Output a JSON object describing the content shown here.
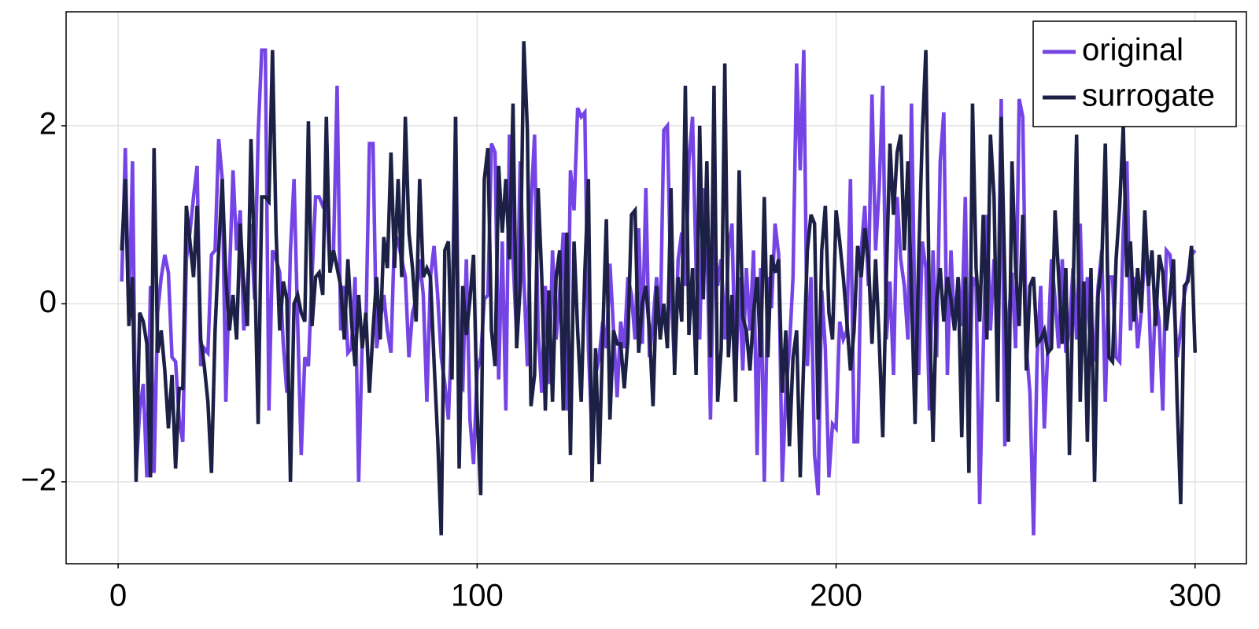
{
  "chart_data": {
    "type": "line",
    "x": [
      1,
      2,
      3,
      4,
      5,
      6,
      7,
      8,
      9,
      10,
      11,
      12,
      13,
      14,
      15,
      16,
      17,
      18,
      19,
      20,
      21,
      22,
      23,
      24,
      25,
      26,
      27,
      28,
      29,
      30,
      31,
      32,
      33,
      34,
      35,
      36,
      37,
      38,
      39,
      40,
      41,
      42,
      43,
      44,
      45,
      46,
      47,
      48,
      49,
      50,
      51,
      52,
      53,
      54,
      55,
      56,
      57,
      58,
      59,
      60,
      61,
      62,
      63,
      64,
      65,
      66,
      67,
      68,
      69,
      70,
      71,
      72,
      73,
      74,
      75,
      76,
      77,
      78,
      79,
      80,
      81,
      82,
      83,
      84,
      85,
      86,
      87,
      88,
      89,
      90,
      91,
      92,
      93,
      94,
      95,
      96,
      97,
      98,
      99,
      100,
      101,
      102,
      103,
      104,
      105,
      106,
      107,
      108,
      109,
      110,
      111,
      112,
      113,
      114,
      115,
      116,
      117,
      118,
      119,
      120,
      121,
      122,
      123,
      124,
      125,
      126,
      127,
      128,
      129,
      130,
      131,
      132,
      133,
      134,
      135,
      136,
      137,
      138,
      139,
      140,
      141,
      142,
      143,
      144,
      145,
      146,
      147,
      148,
      149,
      150,
      151,
      152,
      153,
      154,
      155,
      156,
      157,
      158,
      159,
      160,
      161,
      162,
      163,
      164,
      165,
      166,
      167,
      168,
      169,
      170,
      171,
      172,
      173,
      174,
      175,
      176,
      177,
      178,
      179,
      180,
      181,
      182,
      183,
      184,
      185,
      186,
      187,
      188,
      189,
      190,
      191,
      192,
      193,
      194,
      195,
      196,
      197,
      198,
      199,
      200,
      201,
      202,
      203,
      204,
      205,
      206,
      207,
      208,
      209,
      210,
      211,
      212,
      213,
      214,
      215,
      216,
      217,
      218,
      219,
      220,
      221,
      222,
      223,
      224,
      225,
      226,
      227,
      228,
      229,
      230,
      231,
      232,
      233,
      234,
      235,
      236,
      237,
      238,
      239,
      240,
      241,
      242,
      243,
      244,
      245,
      246,
      247,
      248,
      249,
      250,
      251,
      252,
      253,
      254,
      255,
      256,
      257,
      258,
      259,
      260,
      261,
      262,
      263,
      264,
      265,
      266,
      267,
      268,
      269,
      270,
      271,
      272,
      273,
      274,
      275,
      276,
      277,
      278,
      279,
      280,
      281,
      282,
      283,
      284,
      285,
      286,
      287,
      288,
      289,
      290,
      291,
      292,
      293,
      294,
      295,
      296,
      297,
      298,
      299,
      300
    ],
    "series": [
      {
        "name": "original",
        "color": "#7544e4",
        "values": [
          0.25,
          1.75,
          -0.2,
          1.6,
          -1.9,
          -1.2,
          -0.9,
          -1.95,
          0.2,
          -1.9,
          -0.1,
          0.3,
          0.55,
          0.35,
          -0.6,
          -0.65,
          -1.3,
          -1.55,
          0.5,
          0.8,
          1.2,
          1.55,
          -0.7,
          -0.5,
          -0.55,
          0.55,
          0.6,
          1.85,
          1.4,
          -1.1,
          0.3,
          1.5,
          0.6,
          1.05,
          -0.3,
          0.2,
          0.9,
          0.05,
          1.9,
          2.85,
          2.85,
          -1.2,
          0.6,
          0.5,
          0.35,
          -0.45,
          -1.0,
          0.6,
          1.4,
          -0.2,
          -1.7,
          -0.6,
          -0.7,
          0.3,
          1.2,
          1.2,
          1.1,
          1.15,
          0.4,
          0.6,
          2.45,
          -0.3,
          0.2,
          -0.55,
          -0.5,
          0.3,
          -2.0,
          -0.4,
          -0.3,
          1.8,
          1.8,
          -0.5,
          -0.2,
          0.1,
          -0.3,
          -0.55,
          0.8,
          0.7,
          0.5,
          0.3,
          -0.6,
          -0.1,
          0.05,
          0.5,
          0.1,
          -1.1,
          0.3,
          0.65,
          0.1,
          -0.6,
          -0.9,
          -1.3,
          -0.2,
          2.1,
          -0.9,
          -0.95,
          0.5,
          -1.3,
          -1.8,
          -0.75,
          -0.6,
          0.05,
          0.1,
          1.8,
          1.7,
          -0.85,
          0.7,
          -1.2,
          1.9,
          0.5,
          -0.35,
          1.6,
          0.3,
          -0.7,
          1.1,
          1.9,
          -0.3,
          -1.0,
          0.2,
          -0.9,
          0.6,
          -0.4,
          0.1,
          0.8,
          -1.2,
          1.5,
          1.05,
          2.2,
          2.1,
          2.15,
          -0.5,
          -1.5,
          -0.8,
          -0.6,
          -0.2,
          -0.5,
          0.45,
          -0.3,
          -1.05,
          -0.2,
          -0.5,
          0.3,
          0.1,
          -0.4,
          0.85,
          -0.45,
          1.3,
          -0.6,
          -0.2,
          0.3,
          -0.3,
          1.95,
          2.0,
          0.15,
          -0.7,
          0.5,
          0.8,
          0.2,
          1.6,
          2.1,
          0.4,
          -0.4,
          1.3,
          0.8,
          -1.3,
          0.9,
          0.2,
          0.5,
          -0.4,
          0.6,
          0.9,
          -0.9,
          0.3,
          -0.75,
          0.4,
          -0.3,
          0.6,
          -1.7,
          0.4,
          -2.0,
          0.3,
          -0.05,
          0.9,
          0.55,
          -2.0,
          -1.0,
          -0.5,
          0.3,
          2.7,
          1.5,
          2.85,
          -0.7,
          0.3,
          -1.7,
          -2.15,
          0.15,
          -0.5,
          -1.95,
          -1.35,
          -1.4,
          -0.2,
          -0.4,
          -0.3,
          1.4,
          -1.55,
          -1.55,
          0.6,
          1.1,
          0.2,
          2.35,
          0.6,
          1.3,
          2.45,
          -0.4,
          0.25,
          -0.8,
          1.2,
          0.5,
          0.2,
          -0.4,
          2.25,
          -0.3,
          -0.8,
          0.7,
          0.4,
          -1.2,
          0.6,
          -0.6,
          1.6,
          2.15,
          -0.8,
          0.6,
          -0.3,
          0.3,
          -0.25,
          1.2,
          -1.3,
          0.3,
          0.2,
          -2.25,
          -0.5,
          1.0,
          -0.3,
          0.5,
          -0.3,
          2.3,
          -1.6,
          -0.2,
          0.35,
          -0.5,
          2.3,
          2.1,
          -0.5,
          -1.0,
          -2.6,
          -0.6,
          0.2,
          -1.4,
          -0.5,
          0.5,
          0.05,
          -0.5,
          0.5,
          -0.55,
          -0.3,
          0.4,
          -0.4,
          0.9,
          -0.55,
          0.3,
          -0.7,
          -0.6,
          0.2,
          0.6,
          -1.1,
          0.3,
          0.3,
          -0.6,
          -0.65,
          0.8,
          1.6,
          -0.3,
          0.3,
          -0.5,
          -0.1,
          0.6,
          0.2,
          -1.0,
          0.1,
          -0.2,
          -1.2,
          0.6,
          0.55,
          0.1,
          -0.6,
          -0.3,
          0.1,
          0.3,
          0.55,
          0.6
        ]
      },
      {
        "name": "surrogate",
        "color": "#1c2045",
        "values": [
          0.6,
          1.4,
          -0.25,
          0.3,
          -2.0,
          -0.1,
          -0.2,
          -0.45,
          -1.95,
          1.75,
          -0.55,
          -0.3,
          -0.75,
          -1.4,
          -0.8,
          -1.85,
          -0.95,
          -0.95,
          1.1,
          0.7,
          0.3,
          1.1,
          -0.4,
          -0.7,
          -1.1,
          -1.9,
          -0.3,
          0.6,
          1.4,
          0.3,
          -0.3,
          0.1,
          -0.4,
          0.9,
          0.2,
          -0.25,
          1.85,
          0.5,
          -1.35,
          1.2,
          1.2,
          1.15,
          2.85,
          0.8,
          -0.3,
          0.25,
          0.05,
          -2.0,
          0,
          0.1,
          -0.1,
          -0.2,
          2.05,
          -0.25,
          0.3,
          0.35,
          0.1,
          2.1,
          0.35,
          0.6,
          0.4,
          0.2,
          -0.4,
          0.5,
          -0.2,
          -0.7,
          0.1,
          -0.5,
          -0.1,
          -1.0,
          -0.3,
          0.3,
          -0.4,
          0.75,
          0.4,
          1.7,
          0.4,
          1.4,
          0.3,
          2.1,
          0.8,
          0.4,
          -0.2,
          1.4,
          0.3,
          0.4,
          0.3,
          -0.65,
          -1.5,
          -2.6,
          0.6,
          0.7,
          -0.85,
          2.1,
          -1.85,
          0.2,
          -0.35,
          0.05,
          0.55,
          -1.2,
          -2.15,
          1.4,
          1.75,
          -0.3,
          -0.7,
          1.55,
          0.8,
          1.4,
          0.5,
          2.25,
          -0.5,
          0.2,
          2.95,
          1.95,
          -1.15,
          -0.8,
          1.3,
          0.3,
          -1.2,
          0.15,
          -1.1,
          0.3,
          0.6,
          -1.2,
          0.8,
          -1.7,
          0.7,
          -0.3,
          -1.1,
          0.35,
          1.4,
          -2.0,
          -0.5,
          -1.8,
          -0.35,
          0.95,
          -1.3,
          -0.3,
          -0.45,
          -0.45,
          -0.95,
          -0.4,
          1.0,
          1.05,
          -0.55,
          0,
          0.2,
          -0.3,
          -1.15,
          0.2,
          -0.4,
          0,
          -0.5,
          1.3,
          -0.8,
          0.3,
          -0.2,
          2.45,
          -0.35,
          0.4,
          -0.8,
          2.0,
          0.05,
          1.6,
          -0.6,
          2.45,
          -1.1,
          -0.5,
          2.7,
          -0.6,
          0.1,
          -1.1,
          1.5,
          -0.15,
          -0.3,
          -0.75,
          -0.1,
          0.3,
          -0.6,
          1.2,
          -0.6,
          0.55,
          0.35,
          0.5,
          -1.0,
          -0.3,
          -1.6,
          -0.6,
          -0.3,
          -1.95,
          -0.6,
          0.6,
          1.0,
          0.9,
          -1.3,
          0.6,
          1.1,
          -0.1,
          -0.4,
          1.05,
          0.7,
          0.3,
          -0.2,
          -0.75,
          -0.3,
          0.65,
          0.3,
          0.85,
          0.5,
          -0.45,
          0.5,
          -0.4,
          -1.5,
          0.3,
          1.8,
          1.0,
          1.7,
          1.9,
          0.6,
          1.6,
          0.1,
          -1.35,
          0.5,
          1.9,
          2.85,
          -0.1,
          -1.55,
          0.05,
          0.4,
          -0.2,
          0.3,
          0.05,
          -0.3,
          0.3,
          -1.5,
          0.3,
          -1.9,
          2.25,
          0.4,
          -0.2,
          1.0,
          -0.4,
          1.9,
          1.2,
          -1.1,
          2.1,
          0.3,
          -1.55,
          1.6,
          0.4,
          -0.25,
          1.0,
          -0.75,
          0.2,
          0.3,
          -0.45,
          -0.4,
          -0.3,
          -0.55,
          -0.5,
          1.05,
          0.3,
          -0.45,
          0.4,
          -1.7,
          0.1,
          1.9,
          -1.1,
          0.25,
          -1.55,
          0.4,
          -2.0,
          0.1,
          0.45,
          1.8,
          -0.6,
          -0.65,
          0.5,
          1.1,
          2.0,
          0.3,
          0.7,
          -0.2,
          0.4,
          -0.1,
          1.05,
          0.2,
          0.6,
          -0.25,
          0.55,
          0.35,
          -0.3,
          0.1,
          0.5,
          -1.1,
          -2.25,
          0.2,
          0.25,
          0.65,
          -0.55
        ]
      }
    ],
    "xlim": [
      -14.5,
      314.3
    ],
    "ylim": [
      -2.92,
      3.28
    ],
    "xticks": [
      0,
      100,
      200,
      300
    ],
    "yticks": [
      {
        "value": -2,
        "label": "−2"
      },
      0,
      2
    ],
    "grid": true,
    "legend": "upper right"
  }
}
